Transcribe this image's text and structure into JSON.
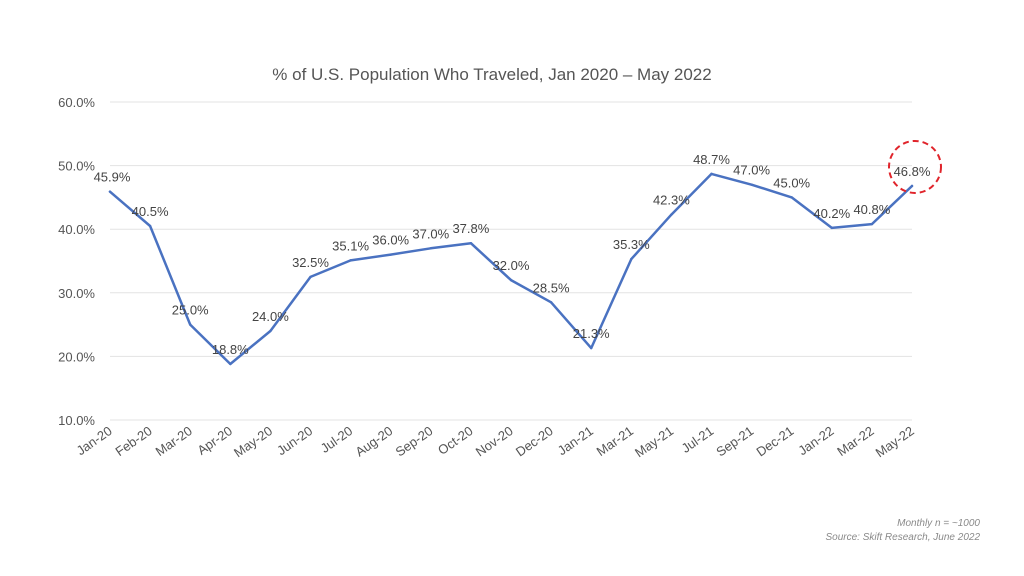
{
  "chart_data": {
    "type": "line",
    "title": "% of U.S. Population Who Traveled, Jan 2020 – May 2022",
    "xlabel": "",
    "ylabel": "",
    "categories": [
      "Jan-20",
      "Feb-20",
      "Mar-20",
      "Apr-20",
      "May-20",
      "Jun-20",
      "Jul-20",
      "Aug-20",
      "Sep-20",
      "Oct-20",
      "Nov-20",
      "Dec-20",
      "Jan-21",
      "Mar-21",
      "May-21",
      "Jul-21",
      "Sep-21",
      "Dec-21",
      "Jan-22",
      "Mar-22",
      "May-22"
    ],
    "values": [
      45.9,
      40.5,
      25.0,
      18.8,
      24.0,
      32.5,
      35.1,
      36.0,
      37.0,
      37.8,
      32.0,
      28.5,
      21.3,
      35.3,
      42.3,
      48.7,
      47.0,
      45.0,
      40.2,
      40.8,
      46.8
    ],
    "value_labels": [
      "45.9%",
      "40.5%",
      "25.0%",
      "18.8%",
      "24.0%",
      "32.5%",
      "35.1%",
      "36.0%",
      "37.0%",
      "37.8%",
      "32.0%",
      "28.5%",
      "21.3%",
      "35.3%",
      "42.3%",
      "48.7%",
      "47.0%",
      "45.0%",
      "40.2%",
      "40.8%",
      "46.8%"
    ],
    "ylim": [
      10,
      60
    ],
    "yticks": [
      10,
      20,
      30,
      40,
      50,
      60
    ],
    "ytick_labels": [
      "10.0%",
      "20.0%",
      "30.0%",
      "40.0%",
      "50.0%",
      "60.0%"
    ],
    "grid": true,
    "line_color": "#4a72c1",
    "highlight": {
      "index": 20,
      "style": "dashed-circle",
      "color": "#e0242b"
    }
  },
  "footnotes": {
    "sample": "Monthly n = ~1000",
    "source": "Source: Skift Research, June 2022"
  }
}
